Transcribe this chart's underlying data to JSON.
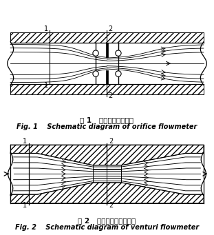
{
  "fig_width": 3.11,
  "fig_height": 3.41,
  "dpi": 100,
  "bg_color": "#ffffff",
  "line_color": "#000000",
  "caption1_zh": "图 1   孔板流量计原理图",
  "caption1_en": "Fig. 1    Schematic diagram of orifice flowmeter",
  "caption2_zh": "图 2   文丘里流量计原理图",
  "caption2_en": "Fig. 2    Schematic diagram of venturi flowmeter"
}
